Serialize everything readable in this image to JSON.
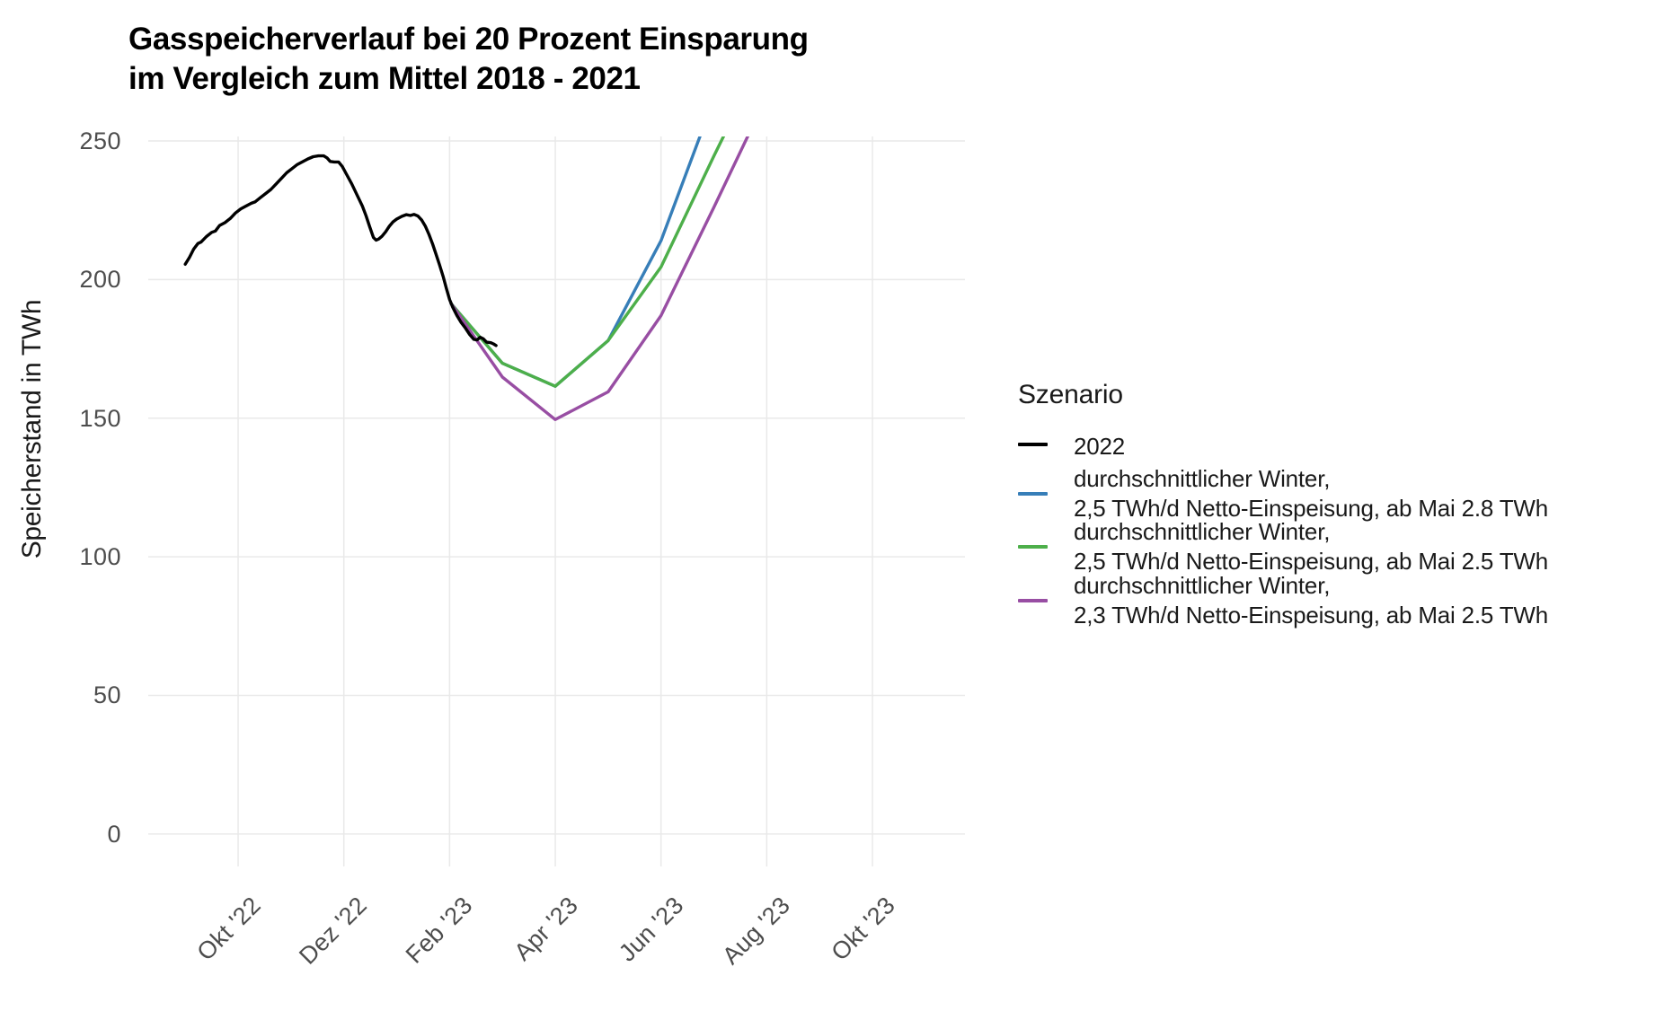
{
  "title": {
    "line1": "Gasspeicherverlauf bei 20 Prozent Einsparung",
    "line2": "im Vergleich zum Mittel 2018 - 2021"
  },
  "y_axis": {
    "label": "Speicherstand in TWh"
  },
  "legend": {
    "title": "Szenario",
    "items": [
      {
        "name": "2022",
        "color": "#000000",
        "lines": [
          "2022"
        ]
      },
      {
        "name": "avg-winter-2point5-ab-mai-2point8",
        "color": "#377eb8",
        "lines": [
          "durchschnittlicher Winter,",
          "2,5 TWh/d Netto-Einspeisung, ab Mai 2.8 TWh"
        ]
      },
      {
        "name": "avg-winter-2point5-ab-mai-2point5",
        "color": "#4daf4a",
        "lines": [
          "durchschnittlicher Winter,",
          "2,5 TWh/d Netto-Einspeisung, ab Mai 2.5 TWh"
        ]
      },
      {
        "name": "avg-winter-2point3-ab-mai-2point5",
        "color": "#984ea3",
        "lines": [
          "durchschnittlicher Winter,",
          "2,3 TWh/d Netto-Einspeisung, ab Mai 2.5 TWh"
        ]
      }
    ]
  },
  "chart_data": {
    "type": "line",
    "title": "Gasspeicherverlauf bei 20 Prozent Einsparung im Vergleich zum Mittel 2018 - 2021",
    "xlabel": "",
    "ylabel": "Speicherstand in TWh",
    "x_unit": "months since 2022-09-01",
    "y_unit": "TWh",
    "xlim": [
      -0.7,
      14.75
    ],
    "ylim": [
      -11.7,
      251.6
    ],
    "grid": true,
    "grid_color": "#e9e9e9",
    "legend_position": "right",
    "x_ticks": [
      {
        "m": 1,
        "label": "Okt '22"
      },
      {
        "m": 3,
        "label": "Dez '22"
      },
      {
        "m": 5,
        "label": "Feb '23"
      },
      {
        "m": 7,
        "label": "Apr '23"
      },
      {
        "m": 9,
        "label": "Jun '23"
      },
      {
        "m": 11,
        "label": "Aug '23"
      },
      {
        "m": 13,
        "label": "Okt '23"
      }
    ],
    "y_ticks": [
      0,
      50,
      100,
      150,
      200,
      250
    ],
    "series": [
      {
        "name": "durchschnittlicher Winter, 2,5 TWh/d Netto-Einspeisung, ab Mai 2.8 TWh",
        "color": "#377eb8",
        "points": [
          [
            5.03,
            191.3
          ],
          [
            6,
            169.8
          ],
          [
            7,
            161.5
          ],
          [
            8,
            178
          ],
          [
            9,
            214
          ],
          [
            10,
            265
          ]
        ]
      },
      {
        "name": "durchschnittlicher Winter, 2,5 TWh/d Netto-Einspeisung, ab Mai 2.5 TWh",
        "color": "#4daf4a",
        "points": [
          [
            5.03,
            191.3
          ],
          [
            6,
            169.8
          ],
          [
            7,
            161.5
          ],
          [
            8,
            178
          ],
          [
            9,
            204.5
          ],
          [
            10,
            244.5
          ],
          [
            10.45,
            262
          ]
        ]
      },
      {
        "name": "durchschnittlicher Winter, 2,3 TWh/d Netto-Einspeisung, ab Mai 2.5 TWh",
        "color": "#984ea3",
        "points": [
          [
            5.03,
            191.3
          ],
          [
            6,
            164.8
          ],
          [
            7,
            149.5
          ],
          [
            8,
            159.5
          ],
          [
            9,
            187
          ],
          [
            10,
            226
          ],
          [
            10.85,
            260
          ]
        ]
      },
      {
        "name": "2022",
        "color": "#000000",
        "points": [
          [
            0,
            205.5
          ],
          [
            0.08,
            208
          ],
          [
            0.16,
            211
          ],
          [
            0.24,
            213
          ],
          [
            0.3,
            213.5
          ],
          [
            0.4,
            215.5
          ],
          [
            0.5,
            217
          ],
          [
            0.57,
            217.5
          ],
          [
            0.65,
            219.5
          ],
          [
            0.75,
            220.5
          ],
          [
            0.85,
            222
          ],
          [
            0.95,
            224
          ],
          [
            1.05,
            225.5
          ],
          [
            1.15,
            226.5
          ],
          [
            1.25,
            227.5
          ],
          [
            1.32,
            228
          ],
          [
            1.42,
            229.5
          ],
          [
            1.52,
            231
          ],
          [
            1.62,
            232.5
          ],
          [
            1.72,
            234.5
          ],
          [
            1.82,
            236.5
          ],
          [
            1.92,
            238.5
          ],
          [
            2.02,
            240
          ],
          [
            2.12,
            241.5
          ],
          [
            2.22,
            242.5
          ],
          [
            2.32,
            243.5
          ],
          [
            2.42,
            244.3
          ],
          [
            2.52,
            244.6
          ],
          [
            2.62,
            244.6
          ],
          [
            2.68,
            243.9
          ],
          [
            2.74,
            242.6
          ],
          [
            2.82,
            242.4
          ],
          [
            2.9,
            242.4
          ],
          [
            2.97,
            240.8
          ],
          [
            3.05,
            238
          ],
          [
            3.15,
            234.5
          ],
          [
            3.25,
            230.5
          ],
          [
            3.35,
            226.5
          ],
          [
            3.42,
            223
          ],
          [
            3.49,
            219
          ],
          [
            3.56,
            215.2
          ],
          [
            3.61,
            214.2
          ],
          [
            3.66,
            214.6
          ],
          [
            3.72,
            215.6
          ],
          [
            3.79,
            217.2
          ],
          [
            3.86,
            219.2
          ],
          [
            3.93,
            220.8
          ],
          [
            4,
            221.8
          ],
          [
            4.1,
            222.8
          ],
          [
            4.18,
            223.4
          ],
          [
            4.26,
            223.1
          ],
          [
            4.33,
            223.5
          ],
          [
            4.4,
            222.9
          ],
          [
            4.47,
            221.5
          ],
          [
            4.54,
            219.3
          ],
          [
            4.61,
            216.3
          ],
          [
            4.68,
            212.8
          ],
          [
            4.74,
            209.3
          ],
          [
            4.81,
            205.3
          ],
          [
            4.88,
            201
          ],
          [
            4.94,
            196.8
          ],
          [
            5,
            192.8
          ],
          [
            5.06,
            190
          ],
          [
            5.14,
            187
          ],
          [
            5.22,
            184.5
          ],
          [
            5.3,
            182.5
          ],
          [
            5.38,
            180.2
          ],
          [
            5.46,
            178.4
          ],
          [
            5.52,
            178.2
          ],
          [
            5.58,
            179.2
          ],
          [
            5.64,
            178.6
          ],
          [
            5.7,
            177.4
          ],
          [
            5.78,
            177.2
          ],
          [
            5.83,
            176.8
          ],
          [
            5.88,
            176.2
          ]
        ]
      }
    ]
  }
}
